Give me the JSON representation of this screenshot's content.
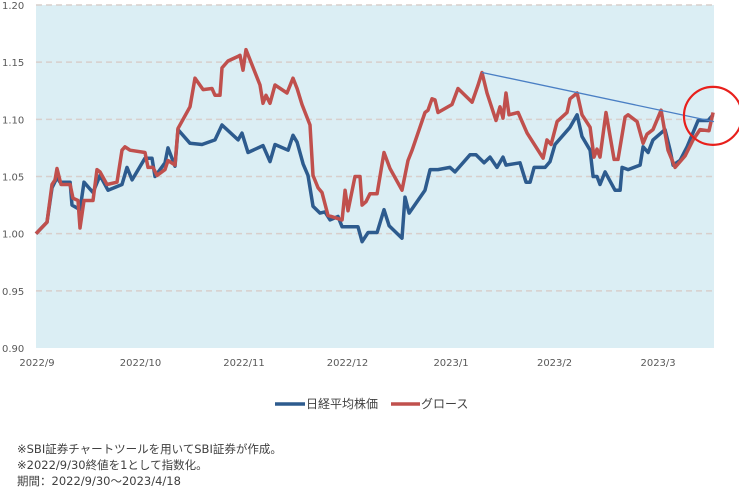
{
  "chart_data": {
    "type": "line",
    "title": "",
    "xlabel": "",
    "ylabel": "",
    "x_unit": "months since 2022/9 axis label",
    "xlim": [
      0,
      6.55
    ],
    "ylim": [
      0.9,
      1.2
    ],
    "yticks": [
      "0.90",
      "0.95",
      "1.00",
      "1.05",
      "1.10",
      "1.15",
      "1.20"
    ],
    "ytick_values": [
      0.9,
      0.95,
      1.0,
      1.05,
      1.1,
      1.15,
      1.2
    ],
    "xticks": [
      "2022/9",
      "2022/10",
      "2022/11",
      "2022/12",
      "2023/1",
      "2023/2",
      "2023/3"
    ],
    "xtick_values": [
      0,
      1,
      2,
      3,
      4,
      5,
      6
    ],
    "grid": "horizontal dashed",
    "legend_position": "bottom-center",
    "colors": {
      "background": "#dbeef4",
      "grid": "#d8cfcc",
      "trendline": "#4a7fc4",
      "circle": "#e8201c"
    },
    "series": [
      {
        "name": "日経平均株価",
        "color": "#2d5b8e",
        "points": [
          [
            0,
            1.0
          ],
          [
            0.106,
            1.01
          ],
          [
            0.155,
            1.04
          ],
          [
            0.203,
            1.049
          ],
          [
            0.232,
            1.045
          ],
          [
            0.329,
            1.045
          ],
          [
            0.348,
            1.025
          ],
          [
            0.425,
            1.021
          ],
          [
            0.464,
            1.045
          ],
          [
            0.551,
            1.036
          ],
          [
            0.618,
            1.051
          ],
          [
            0.696,
            1.038
          ],
          [
            0.831,
            1.043
          ],
          [
            0.879,
            1.058
          ],
          [
            0.928,
            1.047
          ],
          [
            1.053,
            1.066
          ],
          [
            1.121,
            1.066
          ],
          [
            1.15,
            1.05
          ],
          [
            1.246,
            1.062
          ],
          [
            1.275,
            1.075
          ],
          [
            1.343,
            1.059
          ],
          [
            1.372,
            1.091
          ],
          [
            1.488,
            1.079
          ],
          [
            1.604,
            1.078
          ],
          [
            1.729,
            1.082
          ],
          [
            1.797,
            1.095
          ],
          [
            1.952,
            1.082
          ],
          [
            1.99,
            1.088
          ],
          [
            2.048,
            1.071
          ],
          [
            2.193,
            1.077
          ],
          [
            2.261,
            1.063
          ],
          [
            2.309,
            1.078
          ],
          [
            2.435,
            1.073
          ],
          [
            2.483,
            1.086
          ],
          [
            2.522,
            1.08
          ],
          [
            2.58,
            1.061
          ],
          [
            2.628,
            1.051
          ],
          [
            2.676,
            1.024
          ],
          [
            2.744,
            1.018
          ],
          [
            2.792,
            1.019
          ],
          [
            2.841,
            1.012
          ],
          [
            2.918,
            1.015
          ],
          [
            2.957,
            1.006
          ],
          [
            3.111,
            1.006
          ],
          [
            3.15,
            0.993
          ],
          [
            3.208,
            1.001
          ],
          [
            3.295,
            1.001
          ],
          [
            3.362,
            1.021
          ],
          [
            3.411,
            1.007
          ],
          [
            3.536,
            0.996
          ],
          [
            3.565,
            1.032
          ],
          [
            3.604,
            1.018
          ],
          [
            3.758,
            1.038
          ],
          [
            3.807,
            1.056
          ],
          [
            3.884,
            1.056
          ],
          [
            4.0,
            1.058
          ],
          [
            4.048,
            1.054
          ],
          [
            4.193,
            1.069
          ],
          [
            4.251,
            1.069
          ],
          [
            4.329,
            1.062
          ],
          [
            4.386,
            1.067
          ],
          [
            4.454,
            1.058
          ],
          [
            4.512,
            1.067
          ],
          [
            4.541,
            1.06
          ],
          [
            4.676,
            1.062
          ],
          [
            4.734,
            1.045
          ],
          [
            4.773,
            1.045
          ],
          [
            4.812,
            1.058
          ],
          [
            4.918,
            1.058
          ],
          [
            4.966,
            1.063
          ],
          [
            5.014,
            1.078
          ],
          [
            5.159,
            1.093
          ],
          [
            5.227,
            1.104
          ],
          [
            5.275,
            1.085
          ],
          [
            5.353,
            1.073
          ],
          [
            5.382,
            1.05
          ],
          [
            5.42,
            1.05
          ],
          [
            5.449,
            1.043
          ],
          [
            5.498,
            1.054
          ],
          [
            5.594,
            1.038
          ],
          [
            5.643,
            1.038
          ],
          [
            5.662,
            1.058
          ],
          [
            5.72,
            1.056
          ],
          [
            5.836,
            1.06
          ],
          [
            5.865,
            1.076
          ],
          [
            5.913,
            1.071
          ],
          [
            5.961,
            1.082
          ],
          [
            6.077,
            1.091
          ],
          [
            6.126,
            1.073
          ],
          [
            6.155,
            1.06
          ],
          [
            6.222,
            1.064
          ],
          [
            6.29,
            1.076
          ],
          [
            6.396,
            1.099
          ],
          [
            6.493,
            1.099
          ],
          [
            6.541,
            1.104
          ]
        ]
      },
      {
        "name": "グロース",
        "color": "#c0504d",
        "points": [
          [
            0,
            1.0
          ],
          [
            0.106,
            1.01
          ],
          [
            0.155,
            1.043
          ],
          [
            0.184,
            1.047
          ],
          [
            0.203,
            1.057
          ],
          [
            0.242,
            1.043
          ],
          [
            0.329,
            1.043
          ],
          [
            0.357,
            1.031
          ],
          [
            0.406,
            1.029
          ],
          [
            0.425,
            1.005
          ],
          [
            0.464,
            1.029
          ],
          [
            0.551,
            1.029
          ],
          [
            0.589,
            1.056
          ],
          [
            0.618,
            1.054
          ],
          [
            0.686,
            1.043
          ],
          [
            0.783,
            1.045
          ],
          [
            0.831,
            1.073
          ],
          [
            0.86,
            1.076
          ],
          [
            0.908,
            1.073
          ],
          [
            1.053,
            1.071
          ],
          [
            1.082,
            1.058
          ],
          [
            1.13,
            1.058
          ],
          [
            1.169,
            1.051
          ],
          [
            1.246,
            1.056
          ],
          [
            1.275,
            1.064
          ],
          [
            1.343,
            1.06
          ],
          [
            1.372,
            1.092
          ],
          [
            1.488,
            1.111
          ],
          [
            1.536,
            1.136
          ],
          [
            1.614,
            1.126
          ],
          [
            1.7,
            1.127
          ],
          [
            1.729,
            1.121
          ],
          [
            1.778,
            1.121
          ],
          [
            1.797,
            1.145
          ],
          [
            1.855,
            1.151
          ],
          [
            1.952,
            1.155
          ],
          [
            1.971,
            1.156
          ],
          [
            2.0,
            1.143
          ],
          [
            2.029,
            1.161
          ],
          [
            2.164,
            1.13
          ],
          [
            2.193,
            1.114
          ],
          [
            2.222,
            1.121
          ],
          [
            2.261,
            1.114
          ],
          [
            2.309,
            1.13
          ],
          [
            2.425,
            1.123
          ],
          [
            2.483,
            1.136
          ],
          [
            2.522,
            1.127
          ],
          [
            2.57,
            1.113
          ],
          [
            2.647,
            1.095
          ],
          [
            2.676,
            1.051
          ],
          [
            2.725,
            1.04
          ],
          [
            2.763,
            1.036
          ],
          [
            2.821,
            1.016
          ],
          [
            2.957,
            1.012
          ],
          [
            2.986,
            1.038
          ],
          [
            3.014,
            1.02
          ],
          [
            3.082,
            1.05
          ],
          [
            3.13,
            1.05
          ],
          [
            3.15,
            1.025
          ],
          [
            3.188,
            1.028
          ],
          [
            3.227,
            1.035
          ],
          [
            3.295,
            1.035
          ],
          [
            3.362,
            1.071
          ],
          [
            3.42,
            1.057
          ],
          [
            3.536,
            1.038
          ],
          [
            3.594,
            1.064
          ],
          [
            3.633,
            1.073
          ],
          [
            3.758,
            1.106
          ],
          [
            3.787,
            1.108
          ],
          [
            3.826,
            1.118
          ],
          [
            3.855,
            1.117
          ],
          [
            3.884,
            1.106
          ],
          [
            4.019,
            1.113
          ],
          [
            4.077,
            1.127
          ],
          [
            4.213,
            1.115
          ],
          [
            4.271,
            1.13
          ],
          [
            4.309,
            1.141
          ],
          [
            4.357,
            1.123
          ],
          [
            4.444,
            1.099
          ],
          [
            4.483,
            1.111
          ],
          [
            4.512,
            1.101
          ],
          [
            4.541,
            1.123
          ],
          [
            4.57,
            1.104
          ],
          [
            4.657,
            1.106
          ],
          [
            4.744,
            1.088
          ],
          [
            4.899,
            1.066
          ],
          [
            4.937,
            1.082
          ],
          [
            4.976,
            1.078
          ],
          [
            5.034,
            1.098
          ],
          [
            5.13,
            1.106
          ],
          [
            5.159,
            1.118
          ],
          [
            5.227,
            1.123
          ],
          [
            5.275,
            1.104
          ],
          [
            5.353,
            1.093
          ],
          [
            5.391,
            1.067
          ],
          [
            5.42,
            1.074
          ],
          [
            5.449,
            1.067
          ],
          [
            5.507,
            1.106
          ],
          [
            5.585,
            1.065
          ],
          [
            5.623,
            1.065
          ],
          [
            5.691,
            1.102
          ],
          [
            5.72,
            1.104
          ],
          [
            5.807,
            1.098
          ],
          [
            5.865,
            1.079
          ],
          [
            5.903,
            1.087
          ],
          [
            5.961,
            1.091
          ],
          [
            6.039,
            1.108
          ],
          [
            6.106,
            1.073
          ],
          [
            6.174,
            1.058
          ],
          [
            6.271,
            1.068
          ],
          [
            6.348,
            1.082
          ],
          [
            6.415,
            1.091
          ],
          [
            6.502,
            1.09
          ],
          [
            6.541,
            1.106
          ]
        ]
      }
    ],
    "annotations": {
      "trendline": [
        [
          4.309,
          1.141
        ],
        [
          6.55,
          1.098
        ]
      ],
      "circle_center": [
        6.54,
        1.103
      ]
    }
  },
  "legend": [
    "日経平均株価",
    "グロース"
  ],
  "notes": [
    "※SBI証券チャートツールを用いてSBI証券が作成。",
    "※2022/9/30終値を1として指数化。",
    "期間：2022/9/30～2023/4/18"
  ]
}
